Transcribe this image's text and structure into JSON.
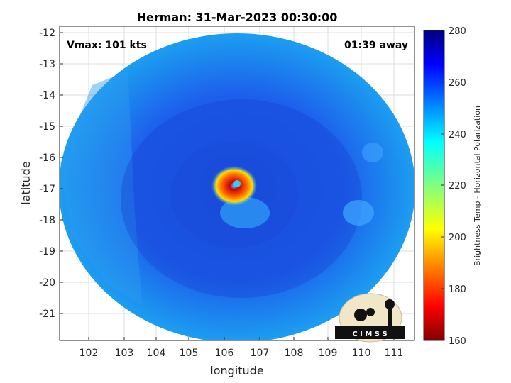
{
  "title": "Herman: 31-Mar-2023 00:30:00",
  "vmax_label": "Vmax: 101 kts",
  "away_label": "01:39 away",
  "xlabel": "longitude",
  "ylabel": "latitude",
  "x_ticks": [
    "102",
    "103",
    "104",
    "105",
    "106",
    "107",
    "108",
    "109",
    "110",
    "111"
  ],
  "y_ticks": [
    "-12",
    "-13",
    "-14",
    "-15",
    "-16",
    "-17",
    "-18",
    "-19",
    "-20",
    "-21"
  ],
  "colorbar": {
    "label": "Brightness Temp - Horizontal Polarization",
    "ticks": [
      "280",
      "260",
      "240",
      "220",
      "200",
      "180",
      "160"
    ],
    "min": 160,
    "max": 280
  },
  "logo_text": "C I M S S",
  "colors": {
    "background_swath": "#1f5fe8",
    "eye_core": "#cc0000",
    "eye_ring": "#ff9900"
  }
}
